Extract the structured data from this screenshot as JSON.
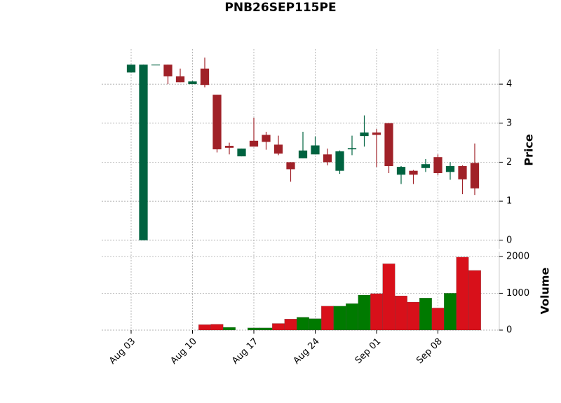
{
  "chart_data": {
    "type": "candlestick",
    "title": "PNB26SEP115PE",
    "y_label": "Price",
    "volume_label": "Volume",
    "categories": [
      "Aug 03",
      null,
      null,
      null,
      null,
      "Aug 10",
      null,
      null,
      null,
      null,
      "Aug 17",
      null,
      null,
      null,
      null,
      "Aug 24",
      null,
      null,
      null,
      null,
      "Sep 01",
      null,
      null,
      null,
      null,
      "Sep 08",
      null,
      null,
      null
    ],
    "open": [
      4.3,
      0,
      4.5,
      4.5,
      4.2,
      4.0,
      4.4,
      3.73,
      2.42,
      2.15,
      2.55,
      2.7,
      2.45,
      2.0,
      2.1,
      2.2,
      2.2,
      1.78,
      2.33,
      2.67,
      2.76,
      3.0,
      1.68,
      1.78,
      1.85,
      2.13,
      1.75,
      1.9,
      1.98
    ],
    "high": [
      4.5,
      4.5,
      4.5,
      4.5,
      4.4,
      4.08,
      4.68,
      3.73,
      2.5,
      2.35,
      3.14,
      2.78,
      2.68,
      2.0,
      2.78,
      2.66,
      2.35,
      2.3,
      2.68,
      3.2,
      2.85,
      3.0,
      1.9,
      1.8,
      2.08,
      2.2,
      2.0,
      1.92,
      2.48
    ],
    "low": [
      4.3,
      0,
      4.5,
      4.0,
      4.05,
      4.0,
      3.92,
      2.25,
      2.2,
      2.15,
      2.4,
      2.32,
      2.18,
      1.5,
      2.1,
      2.2,
      1.92,
      1.7,
      2.18,
      2.4,
      1.88,
      1.72,
      1.44,
      1.44,
      1.75,
      1.67,
      1.55,
      1.18,
      1.16
    ],
    "close": [
      4.5,
      4.5,
      4.5,
      4.2,
      4.05,
      4.07,
      3.98,
      2.33,
      2.37,
      2.35,
      2.4,
      2.52,
      2.22,
      1.82,
      2.3,
      2.43,
      2.0,
      2.28,
      2.36,
      2.76,
      2.7,
      1.9,
      1.88,
      1.68,
      1.95,
      1.72,
      1.9,
      1.56,
      1.33
    ],
    "volume": [
      0,
      0,
      0,
      0,
      0,
      0,
      150,
      160,
      75,
      0,
      60,
      60,
      180,
      300,
      350,
      310,
      650,
      650,
      720,
      950,
      990,
      1800,
      930,
      760,
      870,
      600,
      1000,
      1980,
      1620
    ],
    "up_color": "#006340",
    "down_color": "#a02128",
    "volume_up_color": "#007a00",
    "volume_down_color": "#d8101a",
    "xlim": [
      -2.4,
      30
    ],
    "ylim": [
      -0.22,
      4.9
    ],
    "yticks": [
      0,
      1,
      2,
      3,
      4
    ],
    "volume_ylim": [
      0,
      2130
    ],
    "volume_yticks": [
      0,
      1000,
      2000
    ],
    "grid": true
  }
}
